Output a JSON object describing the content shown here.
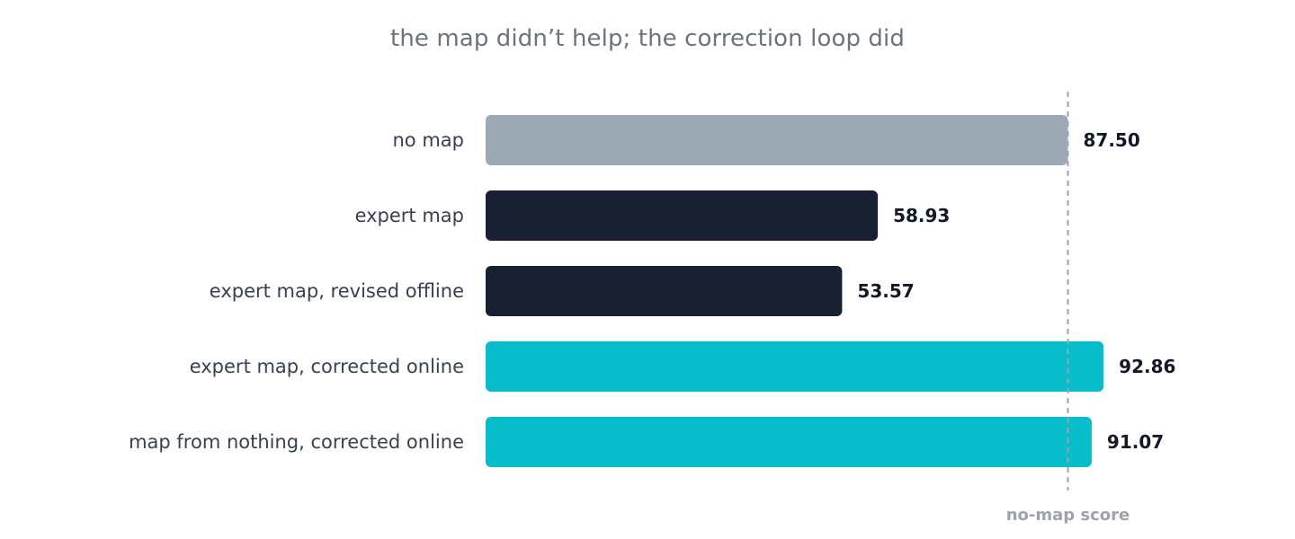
{
  "chart_data": {
    "type": "bar",
    "orientation": "horizontal",
    "title": "the map didn’t help; the correction loop did",
    "categories": [
      "no map",
      "expert map",
      "expert map, revised offline",
      "expert map, corrected online",
      "map from nothing, corrected online"
    ],
    "values": [
      87.5,
      58.93,
      53.57,
      92.86,
      91.07
    ],
    "value_labels": [
      "87.50",
      "58.93",
      "53.57",
      "92.86",
      "91.07"
    ],
    "bar_colors": [
      "#9ca8b4",
      "#172132",
      "#172132",
      "#08bdca",
      "#08bdca"
    ],
    "xlim": [
      0,
      100
    ],
    "grid": false,
    "reference_line": {
      "value": 87.5,
      "label": "no-map score",
      "color": "#9ca3af",
      "style": "dashed"
    }
  }
}
